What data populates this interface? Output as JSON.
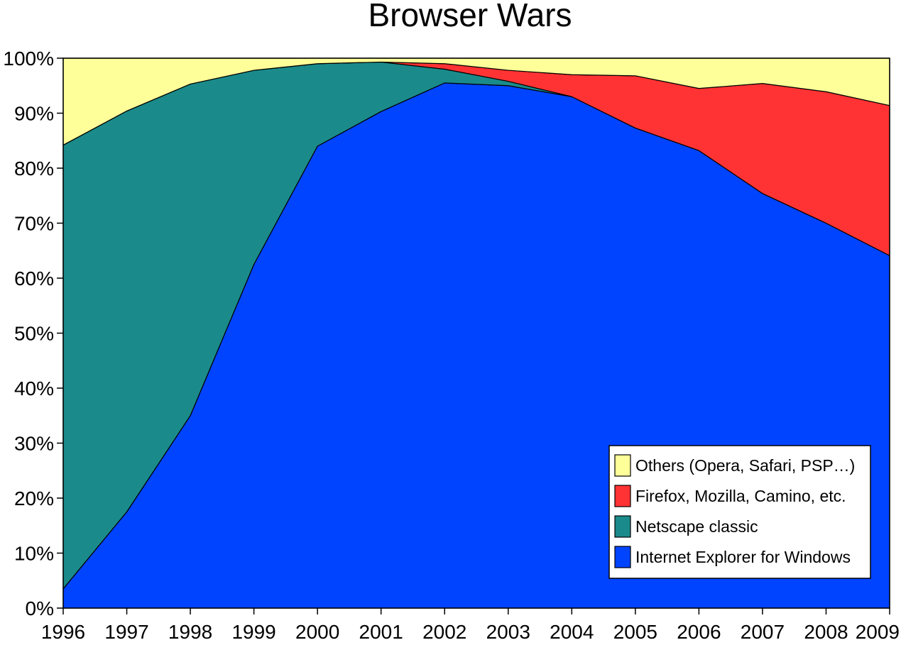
{
  "chart_data": {
    "type": "area",
    "stacked": true,
    "title": "Browser Wars",
    "x": [
      "1996",
      "1997",
      "1998",
      "1999",
      "2000",
      "2001",
      "2002",
      "2003",
      "2004",
      "2005",
      "2006",
      "2007",
      "2008",
      "2009"
    ],
    "ylim": [
      0,
      100
    ],
    "yticks": [
      "0%",
      "10%",
      "20%",
      "30%",
      "40%",
      "50%",
      "60%",
      "70%",
      "80%",
      "90%",
      "100%"
    ],
    "legend_position": "bottom-right",
    "series": [
      {
        "name": "Internet Explorer for Windows",
        "color": "#0044ff",
        "values": [
          3.5,
          17.5,
          35,
          62.5,
          84,
          90.3,
          95.5,
          95,
          93,
          87.3,
          83.2,
          75.4,
          70,
          64.1
        ]
      },
      {
        "name": "Netscape classic",
        "color": "#1a8b8a",
        "values": [
          80.7,
          72.9,
          60.3,
          35.3,
          15,
          9,
          2.5,
          0.8,
          0,
          0,
          0,
          0,
          0,
          0
        ]
      },
      {
        "name": "Firefox, Mozilla, Camino, etc.",
        "color": "#ff3333",
        "values": [
          0,
          0,
          0,
          0,
          0,
          0,
          1,
          2,
          4,
          9.5,
          11.3,
          20,
          23.9,
          27.3
        ]
      },
      {
        "name": "Others (Opera, Safari, PSP…)",
        "color": "#ffff99",
        "values": [
          15.8,
          9.6,
          4.7,
          2.2,
          1,
          0.7,
          1,
          2.2,
          3,
          3.2,
          5.5,
          4.6,
          6.1,
          8.6
        ]
      }
    ]
  }
}
